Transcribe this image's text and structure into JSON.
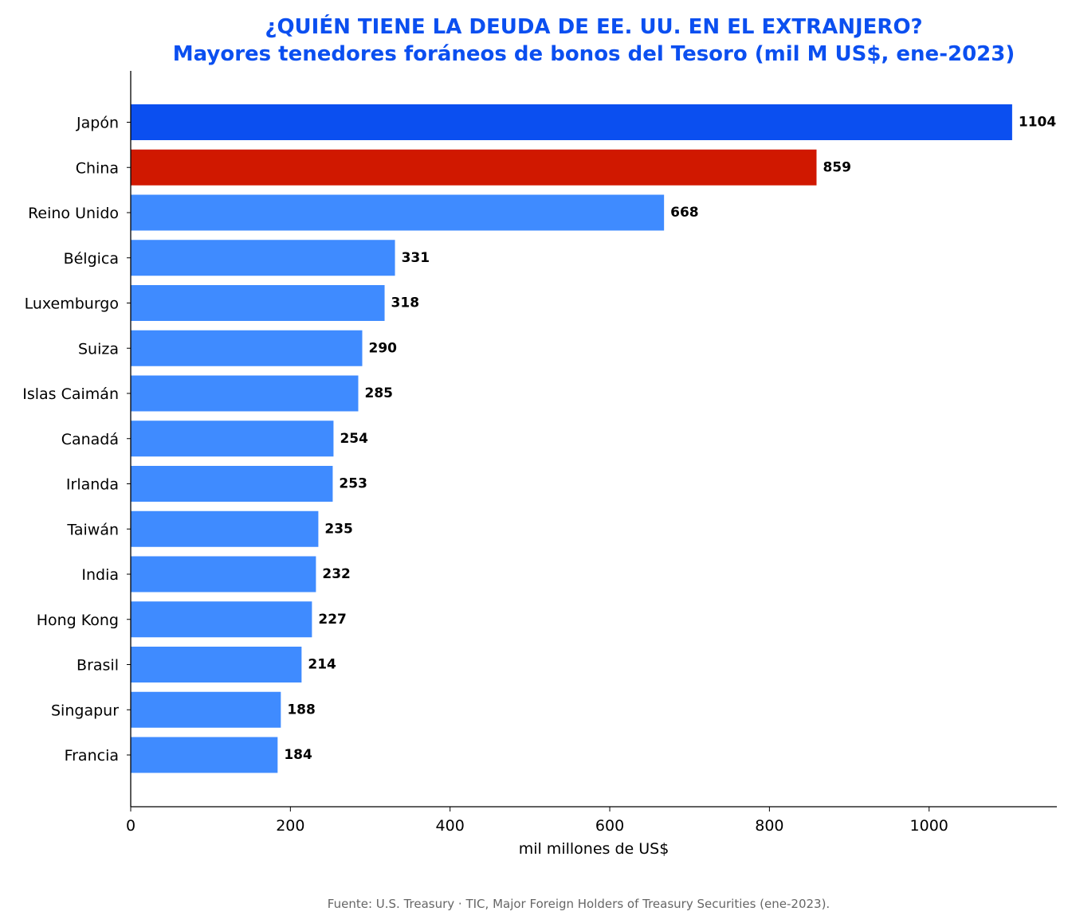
{
  "chart_data": {
    "type": "bar",
    "orientation": "horizontal",
    "title": "¿QUIÉN TIENE LA DEUDA DE EE. UU. EN EL EXTRANJERO?",
    "subtitle": "Mayores tenedores foráneos de bonos del Tesoro (mil M US$, ene-2023)",
    "xlabel": "mil millones de US$",
    "ylabel": "",
    "categories": [
      "Japón",
      "China",
      "Reino Unido",
      "Bélgica",
      "Luxemburgo",
      "Suiza",
      "Islas Caimán",
      "Canadá",
      "Irlanda",
      "Taiwán",
      "India",
      "Hong Kong",
      "Brasil",
      "Singapur",
      "Francia"
    ],
    "values": [
      1104,
      859,
      668,
      331,
      318,
      290,
      285,
      254,
      253,
      235,
      232,
      227,
      214,
      188,
      184
    ],
    "bar_colors": [
      "#0b4ff0",
      "#d01800",
      "#3f8bff",
      "#3f8bff",
      "#3f8bff",
      "#3f8bff",
      "#3f8bff",
      "#3f8bff",
      "#3f8bff",
      "#3f8bff",
      "#3f8bff",
      "#3f8bff",
      "#3f8bff",
      "#3f8bff",
      "#3f8bff"
    ],
    "xlim": [
      0,
      1160
    ],
    "xticks": [
      0,
      200,
      400,
      600,
      800,
      1000
    ],
    "data_labels": true,
    "grid": false,
    "legend": "none",
    "source": "Fuente: U.S. Treasury · TIC, Major Foreign Holders of Treasury Securities (ene-2023)."
  }
}
